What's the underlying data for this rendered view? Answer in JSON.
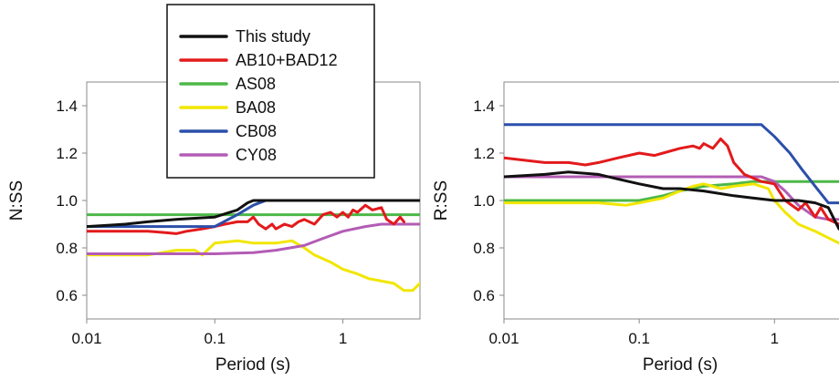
{
  "chart_data": [
    {
      "type": "line",
      "ylabel": "N:SS",
      "xlabel": "Period (s)",
      "xscale": "log",
      "xlim": [
        0.01,
        4
      ],
      "ylim": [
        0.5,
        1.5
      ],
      "xticks": [
        0.01,
        0.1,
        1
      ],
      "xtick_labels": [
        "0.01",
        "0.1",
        "1"
      ],
      "yticks": [
        0.6,
        0.8,
        1.0,
        1.2,
        1.4
      ],
      "ytick_labels": [
        "0.6",
        "0.8",
        "1.0",
        "1.2",
        "1.4"
      ],
      "grid": false,
      "legend": {
        "position": "top-right",
        "entries": [
          {
            "name": "This study",
            "color": "#111111"
          },
          {
            "name": "AB10+BAD12",
            "color": "#e31a1c"
          },
          {
            "name": "AS08",
            "color": "#4db848"
          },
          {
            "name": "BA08",
            "color": "#f2e600"
          },
          {
            "name": "CB08",
            "color": "#2b4faa"
          },
          {
            "name": "CY08",
            "color": "#b35cb5"
          }
        ]
      },
      "series": [
        {
          "name": "AS08",
          "color": "#4db848",
          "x": [
            0.01,
            4
          ],
          "y": [
            0.94,
            0.94
          ]
        },
        {
          "name": "BA08",
          "color": "#f2e600",
          "x": [
            0.01,
            0.03,
            0.05,
            0.07,
            0.08,
            0.1,
            0.15,
            0.2,
            0.3,
            0.4,
            0.5,
            0.6,
            0.8,
            1.0,
            1.3,
            1.6,
            2.0,
            2.5,
            3.0,
            3.5,
            4.0
          ],
          "y": [
            0.77,
            0.77,
            0.79,
            0.79,
            0.77,
            0.82,
            0.83,
            0.82,
            0.82,
            0.83,
            0.8,
            0.77,
            0.74,
            0.71,
            0.69,
            0.67,
            0.66,
            0.65,
            0.62,
            0.62,
            0.65
          ]
        },
        {
          "name": "CY08",
          "color": "#b35cb5",
          "x": [
            0.01,
            0.1,
            0.2,
            0.3,
            0.5,
            0.7,
            1.0,
            1.5,
            2.0,
            3.0,
            4.0
          ],
          "y": [
            0.775,
            0.775,
            0.78,
            0.79,
            0.81,
            0.84,
            0.87,
            0.89,
            0.9,
            0.9,
            0.9
          ]
        },
        {
          "name": "AB10+BAD12",
          "color": "#e31a1c",
          "x": [
            0.01,
            0.02,
            0.03,
            0.04,
            0.05,
            0.06,
            0.08,
            0.1,
            0.12,
            0.15,
            0.18,
            0.2,
            0.22,
            0.25,
            0.28,
            0.3,
            0.35,
            0.4,
            0.45,
            0.5,
            0.6,
            0.7,
            0.8,
            0.9,
            1.0,
            1.1,
            1.2,
            1.3,
            1.5,
            1.7,
            2.0,
            2.2,
            2.5,
            2.8,
            3.0
          ],
          "y": [
            0.87,
            0.87,
            0.87,
            0.865,
            0.86,
            0.87,
            0.88,
            0.89,
            0.9,
            0.91,
            0.91,
            0.93,
            0.9,
            0.88,
            0.9,
            0.88,
            0.9,
            0.89,
            0.91,
            0.92,
            0.9,
            0.94,
            0.95,
            0.93,
            0.95,
            0.93,
            0.96,
            0.95,
            0.98,
            0.96,
            0.97,
            0.92,
            0.9,
            0.93,
            0.91
          ]
        },
        {
          "name": "CB08",
          "color": "#2b4faa",
          "x": [
            0.01,
            0.05,
            0.1,
            0.15,
            0.2,
            0.25,
            4.0
          ],
          "y": [
            0.89,
            0.89,
            0.89,
            0.94,
            0.98,
            1.0,
            1.0
          ]
        },
        {
          "name": "This study",
          "color": "#111111",
          "x": [
            0.01,
            0.02,
            0.03,
            0.05,
            0.07,
            0.1,
            0.15,
            0.18,
            0.2,
            4.0
          ],
          "y": [
            0.89,
            0.9,
            0.91,
            0.92,
            0.925,
            0.93,
            0.96,
            0.99,
            1.0,
            1.0
          ]
        }
      ]
    },
    {
      "type": "line",
      "ylabel": "R:SS",
      "xlabel": "Period (s)",
      "xscale": "log",
      "xlim": [
        0.01,
        3
      ],
      "ylim": [
        0.5,
        1.5
      ],
      "xticks": [
        0.01,
        0.1,
        1
      ],
      "xtick_labels": [
        "0.01",
        "0.1",
        "1"
      ],
      "yticks": [
        0.6,
        0.8,
        1.0,
        1.2,
        1.4
      ],
      "ytick_labels": [
        "0.6",
        "0.8",
        "1.0",
        "1.2",
        "1.4"
      ],
      "grid": false,
      "series": [
        {
          "name": "AS08",
          "color": "#4db848",
          "x": [
            0.01,
            0.1,
            0.15,
            0.2,
            0.3,
            0.5,
            0.7,
            1.0,
            3.0
          ],
          "y": [
            1.0,
            1.0,
            1.02,
            1.04,
            1.06,
            1.07,
            1.08,
            1.08,
            1.08
          ]
        },
        {
          "name": "BA08",
          "color": "#f2e600",
          "x": [
            0.01,
            0.05,
            0.08,
            0.1,
            0.15,
            0.2,
            0.25,
            0.3,
            0.35,
            0.4,
            0.5,
            0.7,
            0.9,
            1.0,
            1.2,
            1.5,
            2.0,
            3.0
          ],
          "y": [
            0.99,
            0.99,
            0.98,
            0.99,
            1.01,
            1.04,
            1.06,
            1.07,
            1.06,
            1.05,
            1.06,
            1.07,
            1.05,
            1.0,
            0.95,
            0.9,
            0.87,
            0.82
          ]
        },
        {
          "name": "CY08",
          "color": "#b35cb5",
          "x": [
            0.01,
            0.02,
            0.03,
            0.1,
            0.5,
            0.8,
            1.0,
            1.2,
            1.5,
            2.0,
            2.5,
            3.0
          ],
          "y": [
            1.1,
            1.1,
            1.1,
            1.1,
            1.1,
            1.1,
            1.08,
            1.04,
            0.98,
            0.93,
            0.92,
            0.92
          ]
        },
        {
          "name": "AB10+BAD12",
          "color": "#e31a1c",
          "x": [
            0.01,
            0.02,
            0.03,
            0.04,
            0.05,
            0.07,
            0.1,
            0.13,
            0.15,
            0.2,
            0.25,
            0.28,
            0.3,
            0.35,
            0.4,
            0.45,
            0.5,
            0.6,
            0.8,
            1.0,
            1.2,
            1.5,
            1.7,
            2.0,
            2.2,
            2.5,
            3.0
          ],
          "y": [
            1.18,
            1.16,
            1.16,
            1.15,
            1.16,
            1.18,
            1.2,
            1.19,
            1.2,
            1.22,
            1.23,
            1.22,
            1.24,
            1.22,
            1.26,
            1.23,
            1.16,
            1.11,
            1.08,
            1.07,
            1.0,
            0.96,
            0.99,
            0.93,
            0.97,
            0.92,
            0.9
          ]
        },
        {
          "name": "CB08",
          "color": "#2b4faa",
          "x": [
            0.01,
            0.5,
            0.8,
            1.0,
            1.3,
            1.6,
            2.0,
            2.5,
            3.0
          ],
          "y": [
            1.32,
            1.32,
            1.32,
            1.27,
            1.2,
            1.13,
            1.06,
            0.99,
            0.99
          ]
        },
        {
          "name": "This study",
          "color": "#111111",
          "x": [
            0.01,
            0.02,
            0.03,
            0.05,
            0.07,
            0.1,
            0.15,
            0.2,
            0.3,
            0.5,
            0.7,
            1.0,
            1.5,
            2.0,
            2.5,
            3.0
          ],
          "y": [
            1.1,
            1.11,
            1.12,
            1.11,
            1.09,
            1.07,
            1.05,
            1.05,
            1.04,
            1.02,
            1.01,
            1.0,
            1.0,
            0.99,
            0.97,
            0.88
          ]
        }
      ]
    }
  ]
}
